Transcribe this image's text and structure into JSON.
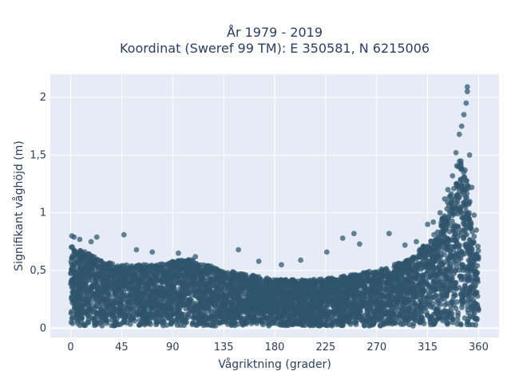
{
  "chart_data": {
    "type": "scatter",
    "title_line1": "År 1979 - 2019",
    "title_line2": "Koordinat (Sweref 99 TM): E 350581, N 6215006",
    "xlabel": "Vågriktning (grader)",
    "ylabel": "Signifikant våghöjd (m)",
    "xlim": [
      -18,
      378
    ],
    "ylim": [
      -0.08,
      2.2
    ],
    "x_ticks": [
      0,
      45,
      90,
      135,
      180,
      225,
      270,
      315,
      360
    ],
    "x_tick_labels": [
      "0",
      "45",
      "90",
      "135",
      "180",
      "225",
      "270",
      "315",
      "360"
    ],
    "y_ticks": [
      0,
      0.5,
      1,
      1.5,
      2
    ],
    "y_tick_labels": [
      "0",
      "0,5",
      "1",
      "1,5",
      "2"
    ],
    "grid": true,
    "marker_color": "#2f546c",
    "plot_bg": "#e5ecf6",
    "envelope": {
      "x": [
        0,
        15,
        30,
        45,
        60,
        75,
        90,
        105,
        120,
        135,
        150,
        165,
        180,
        195,
        210,
        225,
        240,
        255,
        270,
        285,
        300,
        310,
        320,
        330,
        335,
        340,
        345,
        350,
        355,
        360
      ],
      "y_max_dense": [
        0.72,
        0.65,
        0.58,
        0.55,
        0.55,
        0.55,
        0.58,
        0.6,
        0.55,
        0.5,
        0.48,
        0.45,
        0.42,
        0.42,
        0.42,
        0.43,
        0.45,
        0.48,
        0.5,
        0.55,
        0.6,
        0.7,
        0.8,
        1.0,
        1.2,
        1.4,
        1.5,
        1.3,
        0.85,
        0.7
      ],
      "y_min": 0.02
    },
    "outliers": [
      {
        "x": 1,
        "y": 0.8
      },
      {
        "x": 3,
        "y": 0.79
      },
      {
        "x": 8,
        "y": 0.77
      },
      {
        "x": 18,
        "y": 0.75
      },
      {
        "x": 23,
        "y": 0.79
      },
      {
        "x": 47,
        "y": 0.81
      },
      {
        "x": 58,
        "y": 0.68
      },
      {
        "x": 72,
        "y": 0.66
      },
      {
        "x": 95,
        "y": 0.65
      },
      {
        "x": 110,
        "y": 0.62
      },
      {
        "x": 148,
        "y": 0.68
      },
      {
        "x": 166,
        "y": 0.58
      },
      {
        "x": 186,
        "y": 0.55
      },
      {
        "x": 203,
        "y": 0.59
      },
      {
        "x": 226,
        "y": 0.66
      },
      {
        "x": 240,
        "y": 0.78
      },
      {
        "x": 250,
        "y": 0.82
      },
      {
        "x": 255,
        "y": 0.73
      },
      {
        "x": 281,
        "y": 0.82
      },
      {
        "x": 295,
        "y": 0.72
      },
      {
        "x": 305,
        "y": 0.75
      },
      {
        "x": 315,
        "y": 0.9
      },
      {
        "x": 320,
        "y": 0.92
      },
      {
        "x": 326,
        "y": 1.0
      },
      {
        "x": 330,
        "y": 1.12
      },
      {
        "x": 333,
        "y": 1.2
      },
      {
        "x": 337,
        "y": 1.32
      },
      {
        "x": 340,
        "y": 1.52
      },
      {
        "x": 343,
        "y": 1.68
      },
      {
        "x": 345,
        "y": 1.75
      },
      {
        "x": 347,
        "y": 1.85
      },
      {
        "x": 349,
        "y": 1.95
      },
      {
        "x": 350,
        "y": 2.05
      },
      {
        "x": 350,
        "y": 2.09
      },
      {
        "x": 352,
        "y": 1.5
      },
      {
        "x": 354,
        "y": 1.22
      },
      {
        "x": 356,
        "y": 0.98
      },
      {
        "x": 358,
        "y": 0.85
      }
    ]
  }
}
